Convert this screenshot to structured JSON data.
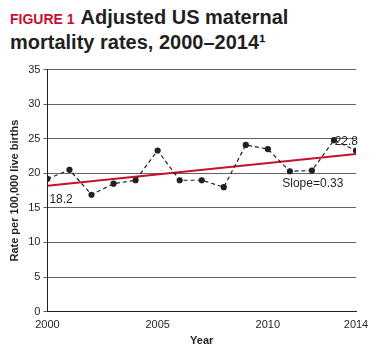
{
  "chart_data": {
    "type": "line",
    "figure_label": "FIGURE 1",
    "title": "Adjusted US maternal mortality rates, 2000–2014¹",
    "x_label": "Year",
    "y_label": "Rate per 100,000 live births",
    "xlim": [
      2000,
      2014
    ],
    "xticks": [
      2000,
      2005,
      2010,
      2014
    ],
    "ylim": [
      0,
      35
    ],
    "yticks": [
      0,
      5,
      10,
      15,
      20,
      25,
      30,
      35
    ],
    "grid": "y",
    "annotations": [
      "Slope=0.33"
    ],
    "series": [
      {
        "type": "line",
        "color": "#231f20",
        "line_style": "dashed",
        "marker": "circle",
        "x": [
          2000,
          2001,
          2002,
          2003,
          2004,
          2005,
          2006,
          2007,
          2008,
          2009,
          2010,
          2011,
          2012,
          2013,
          2014
        ],
        "values": [
          19.2,
          20.5,
          16.9,
          18.5,
          19.0,
          23.3,
          19.0,
          19.0,
          18.0,
          24.1,
          23.5,
          20.3,
          20.4,
          24.8,
          23.3
        ]
      },
      {
        "type": "line",
        "color": "#c8102e",
        "line_style": "solid",
        "marker": "none",
        "x": [
          2000,
          2014
        ],
        "values": [
          18.2,
          22.8
        ],
        "data_labels": true
      }
    ]
  }
}
